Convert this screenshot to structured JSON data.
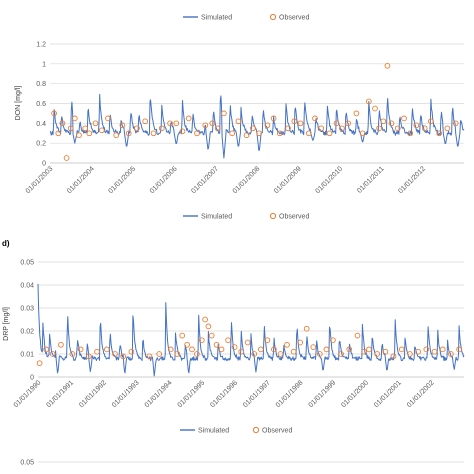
{
  "legend_top": {
    "simulated": "Simulated",
    "observed": "Observed"
  },
  "chart_data": [
    {
      "type": "line",
      "panel_label": "",
      "ylabel": "DON [mg/l]",
      "ylim": [
        0,
        1.2
      ],
      "yticks": [
        "0",
        "0.2",
        "0.4",
        "0.6",
        "0.8",
        "1",
        "1.2"
      ],
      "xlabels": [
        "01/01/2003",
        "01/01/2004",
        "01/01/2005",
        "01/01/2006",
        "01/01/2007",
        "01/01/2008",
        "01/01/2009",
        "01/01/2010",
        "01/01/2011",
        "01/01/2012"
      ],
      "x_range": [
        2003.0,
        2013.0
      ],
      "legend": {
        "simulated": "Simulated",
        "observed": "Observed"
      },
      "colors": {
        "simulated": "#4472c4",
        "observed": "#ed7d31"
      },
      "series": [
        {
          "name": "Simulated",
          "type": "line",
          "baseline": 0.3,
          "events": [
            [
              2003.1,
              0.55
            ],
            [
              2003.28,
              0.48
            ],
            [
              2003.52,
              0.65
            ],
            [
              2003.72,
              0.42
            ],
            [
              2003.92,
              0.6
            ],
            [
              2004.2,
              0.68
            ],
            [
              2004.45,
              0.5
            ],
            [
              2004.72,
              0.45
            ],
            [
              2004.95,
              0.55
            ],
            [
              2005.15,
              0.52
            ],
            [
              2005.42,
              0.72
            ],
            [
              2005.7,
              0.6
            ],
            [
              2005.92,
              0.45
            ],
            [
              2006.2,
              0.62
            ],
            [
              2006.45,
              0.5
            ],
            [
              2006.75,
              0.4
            ],
            [
              2006.95,
              0.55
            ],
            [
              2007.12,
              0.75
            ],
            [
              2007.35,
              0.6
            ],
            [
              2007.6,
              0.65
            ],
            [
              2007.88,
              0.5
            ],
            [
              2008.15,
              0.55
            ],
            [
              2008.4,
              0.45
            ],
            [
              2008.7,
              0.6
            ],
            [
              2008.92,
              0.62
            ],
            [
              2009.15,
              0.65
            ],
            [
              2009.42,
              0.48
            ],
            [
              2009.7,
              0.58
            ],
            [
              2009.92,
              0.6
            ],
            [
              2010.15,
              0.55
            ],
            [
              2010.4,
              0.45
            ],
            [
              2010.7,
              0.62
            ],
            [
              2010.95,
              0.55
            ],
            [
              2011.15,
              0.7
            ],
            [
              2011.45,
              0.5
            ],
            [
              2011.75,
              0.6
            ],
            [
              2011.95,
              0.52
            ],
            [
              2012.2,
              0.65
            ],
            [
              2012.45,
              0.55
            ],
            [
              2012.72,
              0.6
            ],
            [
              2012.92,
              0.45
            ]
          ],
          "dips": [
            [
              2003.6,
              0.2
            ],
            [
              2004.85,
              0.15
            ],
            [
              2006.05,
              0.18
            ],
            [
              2006.82,
              0.12
            ],
            [
              2007.2,
              0.05
            ],
            [
              2007.55,
              0.15
            ],
            [
              2008.05,
              0.1
            ],
            [
              2009.35,
              0.22
            ],
            [
              2010.55,
              0.2
            ],
            [
              2012.55,
              0.18
            ],
            [
              2012.85,
              0.15
            ]
          ]
        },
        {
          "name": "Observed",
          "type": "scatter",
          "points": [
            [
              2003.1,
              0.5
            ],
            [
              2003.2,
              0.3
            ],
            [
              2003.3,
              0.4
            ],
            [
              2003.4,
              0.05
            ],
            [
              2003.5,
              0.35
            ],
            [
              2003.6,
              0.45
            ],
            [
              2003.7,
              0.28
            ],
            [
              2003.85,
              0.35
            ],
            [
              2003.95,
              0.3
            ],
            [
              2004.1,
              0.4
            ],
            [
              2004.25,
              0.33
            ],
            [
              2004.4,
              0.45
            ],
            [
              2004.6,
              0.28
            ],
            [
              2004.75,
              0.38
            ],
            [
              2004.9,
              0.3
            ],
            [
              2005.1,
              0.35
            ],
            [
              2005.3,
              0.42
            ],
            [
              2005.5,
              0.3
            ],
            [
              2005.7,
              0.35
            ],
            [
              2005.9,
              0.4
            ],
            [
              2006.05,
              0.4
            ],
            [
              2006.2,
              0.32
            ],
            [
              2006.35,
              0.45
            ],
            [
              2006.55,
              0.3
            ],
            [
              2006.75,
              0.38
            ],
            [
              2006.92,
              0.4
            ],
            [
              2007.05,
              0.35
            ],
            [
              2007.2,
              0.5
            ],
            [
              2007.4,
              0.3
            ],
            [
              2007.55,
              0.42
            ],
            [
              2007.75,
              0.28
            ],
            [
              2007.9,
              0.35
            ],
            [
              2008.05,
              0.3
            ],
            [
              2008.25,
              0.38
            ],
            [
              2008.4,
              0.45
            ],
            [
              2008.55,
              0.3
            ],
            [
              2008.75,
              0.35
            ],
            [
              2008.9,
              0.42
            ],
            [
              2009.05,
              0.4
            ],
            [
              2009.25,
              0.3
            ],
            [
              2009.4,
              0.45
            ],
            [
              2009.55,
              0.35
            ],
            [
              2009.75,
              0.3
            ],
            [
              2009.92,
              0.4
            ],
            [
              2010.05,
              0.35
            ],
            [
              2010.2,
              0.4
            ],
            [
              2010.4,
              0.5
            ],
            [
              2010.55,
              0.3
            ],
            [
              2010.7,
              0.62
            ],
            [
              2010.85,
              0.55
            ],
            [
              2010.95,
              0.35
            ],
            [
              2011.05,
              0.42
            ],
            [
              2011.15,
              0.98
            ],
            [
              2011.25,
              0.4
            ],
            [
              2011.4,
              0.35
            ],
            [
              2011.55,
              0.45
            ],
            [
              2011.7,
              0.3
            ],
            [
              2011.85,
              0.38
            ],
            [
              2012.05,
              0.35
            ],
            [
              2012.2,
              0.42
            ],
            [
              2012.4,
              0.3
            ],
            [
              2012.6,
              0.35
            ],
            [
              2012.8,
              0.4
            ]
          ]
        }
      ]
    },
    {
      "type": "line",
      "panel_label": "d)",
      "ylabel": "DRP [mg/l]",
      "ylim": [
        0,
        0.05
      ],
      "yticks": [
        "0",
        "0.01",
        "0.02",
        "0.03",
        "0.04",
        "0.05"
      ],
      "xlabels": [
        "01/01/1990",
        "01/01/1991",
        "01/01/1992",
        "01/01/1993",
        "01/01/1994",
        "01/01/1995",
        "01/01/1996",
        "01/01/1997",
        "01/01/1998",
        "01/01/1999",
        "01/01/2000",
        "01/01/2001",
        "01/01/2002"
      ],
      "x_range": [
        1990.0,
        2003.0
      ],
      "legend": {
        "simulated": "Simulated",
        "observed": "Observed"
      },
      "colors": {
        "simulated": "#4472c4",
        "observed": "#ed7d31"
      },
      "series": [
        {
          "name": "Simulated",
          "type": "line",
          "baseline": 0.008,
          "events": [
            [
              1990.0,
              0.04
            ],
            [
              1990.15,
              0.025
            ],
            [
              1990.35,
              0.02
            ],
            [
              1990.55,
              0.015
            ],
            [
              1990.9,
              0.03
            ],
            [
              1991.2,
              0.018
            ],
            [
              1991.5,
              0.015
            ],
            [
              1991.9,
              0.028
            ],
            [
              1992.2,
              0.02
            ],
            [
              1992.5,
              0.015
            ],
            [
              1992.9,
              0.03
            ],
            [
              1993.2,
              0.018
            ],
            [
              1993.9,
              0.032
            ],
            [
              1994.2,
              0.02
            ],
            [
              1994.5,
              0.015
            ],
            [
              1994.9,
              0.028
            ],
            [
              1995.2,
              0.02
            ],
            [
              1995.5,
              0.015
            ],
            [
              1995.9,
              0.026
            ],
            [
              1996.2,
              0.02
            ],
            [
              1996.5,
              0.018
            ],
            [
              1996.9,
              0.025
            ],
            [
              1997.2,
              0.018
            ],
            [
              1997.5,
              0.015
            ],
            [
              1997.9,
              0.024
            ],
            [
              1998.2,
              0.02
            ],
            [
              1998.5,
              0.016
            ],
            [
              1998.9,
              0.026
            ],
            [
              1999.2,
              0.018
            ],
            [
              1999.5,
              0.015
            ],
            [
              1999.9,
              0.024
            ],
            [
              2000.2,
              0.02
            ],
            [
              2000.5,
              0.016
            ],
            [
              2000.9,
              0.025
            ],
            [
              2001.2,
              0.018
            ],
            [
              2001.5,
              0.015
            ],
            [
              2001.9,
              0.024
            ],
            [
              2002.2,
              0.02
            ],
            [
              2002.5,
              0.016
            ],
            [
              2002.85,
              0.022
            ]
          ],
          "dips": [
            [
              1990.6,
              0.001
            ],
            [
              1991.6,
              0.002
            ],
            [
              1992.65,
              0.001
            ],
            [
              1993.55,
              0.0
            ],
            [
              1994.6,
              0.001
            ],
            [
              1996.65,
              0.002
            ],
            [
              1998.7,
              0.002
            ],
            [
              2000.65,
              0.002
            ],
            [
              2002.7,
              0.003
            ]
          ]
        },
        {
          "name": "Observed",
          "type": "scatter",
          "points": [
            [
              1990.05,
              0.006
            ],
            [
              1990.25,
              0.012
            ],
            [
              1990.45,
              0.01
            ],
            [
              1990.7,
              0.014
            ],
            [
              1991.05,
              0.01
            ],
            [
              1991.3,
              0.012
            ],
            [
              1991.55,
              0.009
            ],
            [
              1991.8,
              0.011
            ],
            [
              1992.1,
              0.012
            ],
            [
              1992.35,
              0.01
            ],
            [
              1992.6,
              0.009
            ],
            [
              1992.85,
              0.011
            ],
            [
              1993.4,
              0.009
            ],
            [
              1993.7,
              0.01
            ],
            [
              1994.05,
              0.012
            ],
            [
              1994.25,
              0.01
            ],
            [
              1994.4,
              0.018
            ],
            [
              1994.55,
              0.014
            ],
            [
              1994.7,
              0.012
            ],
            [
              1994.85,
              0.01
            ],
            [
              1995.0,
              0.016
            ],
            [
              1995.1,
              0.025
            ],
            [
              1995.2,
              0.022
            ],
            [
              1995.3,
              0.018
            ],
            [
              1995.45,
              0.014
            ],
            [
              1995.6,
              0.012
            ],
            [
              1995.8,
              0.016
            ],
            [
              1996.0,
              0.013
            ],
            [
              1996.2,
              0.011
            ],
            [
              1996.4,
              0.015
            ],
            [
              1996.6,
              0.01
            ],
            [
              1996.8,
              0.012
            ],
            [
              1997.0,
              0.016
            ],
            [
              1997.2,
              0.012
            ],
            [
              1997.4,
              0.01
            ],
            [
              1997.6,
              0.014
            ],
            [
              1997.8,
              0.011
            ],
            [
              1998.0,
              0.015
            ],
            [
              1998.2,
              0.021
            ],
            [
              1998.4,
              0.013
            ],
            [
              1998.6,
              0.01
            ],
            [
              1998.8,
              0.012
            ],
            [
              1999.0,
              0.016
            ],
            [
              1999.25,
              0.01
            ],
            [
              1999.5,
              0.012
            ],
            [
              1999.75,
              0.018
            ],
            [
              1999.95,
              0.011
            ],
            [
              2000.1,
              0.012
            ],
            [
              2000.35,
              0.01
            ],
            [
              2000.6,
              0.011
            ],
            [
              2000.85,
              0.009
            ],
            [
              2001.1,
              0.012
            ],
            [
              2001.35,
              0.01
            ],
            [
              2001.6,
              0.011
            ],
            [
              2001.85,
              0.012
            ],
            [
              2002.1,
              0.011
            ],
            [
              2002.35,
              0.012
            ],
            [
              2002.6,
              0.01
            ],
            [
              2002.85,
              0.012
            ]
          ]
        }
      ]
    },
    {
      "type": "line",
      "panel_label": "",
      "ylabel": "",
      "ylim": [
        0,
        0.05
      ],
      "yticks": [
        "0.05"
      ],
      "xlabels": [],
      "series": []
    }
  ]
}
